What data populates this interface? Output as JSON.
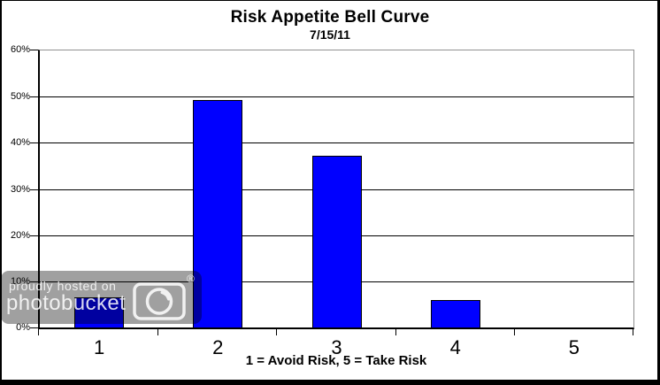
{
  "page": {
    "background_color": "#FFFFFF",
    "frame_color": "#000000"
  },
  "chart": {
    "title": "Risk Appetite Bell Curve",
    "subtitle": "7/15/11",
    "x_axis_title": "1 = Avoid Risk, 5 = Take Risk",
    "bar_color": "#0000FF",
    "bar_border_color": "#000000",
    "plot_top_right_border_color": "#909090",
    "axis_color": "#000000",
    "y_tick_labels": [
      "60%",
      "50%",
      "40%",
      "30%",
      "20%",
      "10%",
      "0%"
    ]
  },
  "chart_data": {
    "type": "bar",
    "title": "Risk Appetite Bell Curve",
    "subtitle": "7/15/11",
    "xlabel": "1 = Avoid Risk, 5 = Take Risk",
    "ylabel": "",
    "categories": [
      "1",
      "2",
      "3",
      "4",
      "5"
    ],
    "values": [
      6.5,
      49.3,
      37.1,
      5.9,
      0
    ],
    "value_unit": "percent",
    "ylim": [
      0,
      60
    ],
    "y_tick_step": 10,
    "grid": true,
    "legend": false
  },
  "watermark": {
    "line1": "proudly hosted on",
    "line2": "photobucket",
    "registered_symbol": "®",
    "background_color": "#A0A0A0"
  }
}
